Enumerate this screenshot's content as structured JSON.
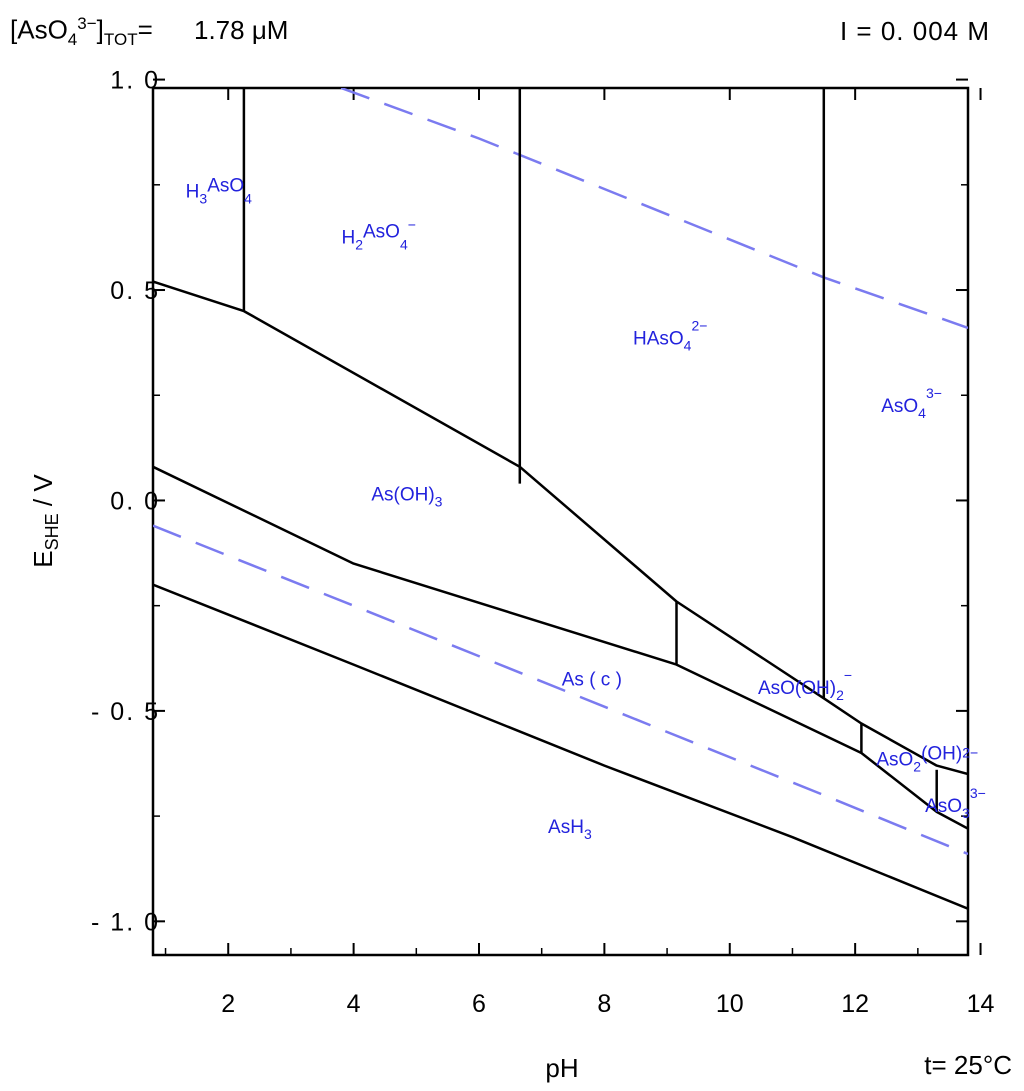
{
  "header": {
    "conc_pre": "[AsO",
    "conc_sub1": "4",
    "conc_sup": "3−",
    "conc_mid": "]",
    "conc_sub2": "TOT",
    "conc_eq": "=",
    "conc_value": "1.78 μM",
    "ionic_strength": "I =  0. 004  M"
  },
  "chart_data": {
    "type": "line",
    "title": "",
    "xlabel": "pH",
    "ylabel": "E",
    "ylabel_sub": "SHE",
    "ylabel_suffix": " / V",
    "footer_right": "t= 25°C",
    "xlim": [
      0.8,
      13.8
    ],
    "ylim": [
      -1.08,
      0.98
    ],
    "x_ticks": [
      2,
      4,
      6,
      8,
      10,
      12,
      14
    ],
    "x_tick_labels": [
      "2",
      "4",
      "6",
      "8",
      "10",
      "12",
      "14"
    ],
    "y_ticks": [
      1.0,
      0.5,
      0.0,
      -0.5,
      -1.0
    ],
    "y_tick_labels": [
      "1. 0",
      "0. 5",
      "0. 0",
      "- 0. 5",
      "- 1. 0"
    ],
    "colors": {
      "boundary": "#000000",
      "water": "#7b7bf0",
      "label": "#2222dd"
    },
    "water_lines": [
      {
        "name": "O2/H2O upper limit",
        "points": [
          [
            3.8,
            0.98
          ],
          [
            6.0,
            0.86
          ],
          [
            9.0,
            0.68
          ],
          [
            11.5,
            0.53
          ],
          [
            13.8,
            0.41
          ]
        ]
      },
      {
        "name": "H2O/H2 lower limit",
        "points": [
          [
            0.8,
            -0.06
          ],
          [
            4.0,
            -0.25
          ],
          [
            8.0,
            -0.49
          ],
          [
            11.5,
            -0.7
          ],
          [
            13.8,
            -0.84
          ]
        ]
      }
    ],
    "boundaries": [
      {
        "name": "H3AsO4/H2AsO4- boundary",
        "points": [
          [
            2.25,
            0.98
          ],
          [
            2.25,
            0.45
          ]
        ]
      },
      {
        "name": "H2AsO4-/HAsO42- boundary",
        "points": [
          [
            6.65,
            0.98
          ],
          [
            6.65,
            0.04
          ]
        ]
      },
      {
        "name": "HAsO42-/AsO43- boundary",
        "points": [
          [
            11.5,
            0.98
          ],
          [
            11.5,
            -0.47
          ]
        ]
      },
      {
        "name": "As(V)/As(III) boundary",
        "points": [
          [
            0.8,
            0.52
          ],
          [
            2.25,
            0.45
          ],
          [
            6.65,
            0.08
          ],
          [
            9.15,
            -0.24
          ],
          [
            11.5,
            -0.47
          ],
          [
            12.1,
            -0.53
          ],
          [
            13.3,
            -0.63
          ],
          [
            13.8,
            -0.65
          ]
        ]
      },
      {
        "name": "As(OH)3/AsO(OH)2- boundary",
        "points": [
          [
            9.15,
            -0.24
          ],
          [
            9.15,
            -0.39
          ]
        ]
      },
      {
        "name": "AsO(OH)2-/AsO2(OH)2- boundary",
        "points": [
          [
            12.1,
            -0.53
          ],
          [
            12.1,
            -0.6
          ]
        ]
      },
      {
        "name": "AsO2(OH)2-/AsO33- boundary",
        "points": [
          [
            13.3,
            -0.64
          ],
          [
            13.3,
            -0.74
          ]
        ]
      },
      {
        "name": "As(III)/As(c) boundary",
        "points": [
          [
            0.8,
            0.08
          ],
          [
            4.0,
            -0.15
          ],
          [
            9.15,
            -0.39
          ],
          [
            12.1,
            -0.6
          ],
          [
            13.3,
            -0.74
          ],
          [
            13.8,
            -0.78
          ]
        ]
      },
      {
        "name": "As(c)/AsH3 boundary",
        "points": [
          [
            0.8,
            -0.2
          ],
          [
            4.0,
            -0.39
          ],
          [
            8.0,
            -0.63
          ],
          [
            11.0,
            -0.8
          ],
          [
            13.8,
            -0.97
          ]
        ]
      }
    ],
    "species": [
      {
        "base": "H",
        "sub1": "3",
        "mid": "AsO",
        "sub2": "4",
        "sup": "",
        "x": 1.85,
        "y": 0.72
      },
      {
        "base": "H",
        "sub1": "2",
        "mid": "AsO",
        "sub2": "4",
        "sup": "−",
        "x": 4.4,
        "y": 0.61
      },
      {
        "base": "HAsO",
        "sub1": "4",
        "mid": "",
        "sub2": "",
        "sup": "2−",
        "x": 9.05,
        "y": 0.37
      },
      {
        "base": "AsO",
        "sub1": "4",
        "mid": "",
        "sub2": "",
        "sup": "3−",
        "x": 12.9,
        "y": 0.21
      },
      {
        "base": "As(OH)",
        "sub1": "3",
        "mid": "",
        "sub2": "",
        "sup": "",
        "x": 4.85,
        "y": 0.0
      },
      {
        "base": "As ( c )",
        "sub1": "",
        "mid": "",
        "sub2": "",
        "sup": "",
        "x": 7.8,
        "y": -0.44
      },
      {
        "base": "AsO(OH)",
        "sub1": "2",
        "mid": "",
        "sub2": "",
        "sup": "−",
        "x": 11.2,
        "y": -0.46
      },
      {
        "base": "AsO",
        "sub1": "2",
        "mid": "(OH)",
        "sub2": "",
        "sup": "2−",
        "x": 13.15,
        "y": -0.63
      },
      {
        "base": "AsO",
        "sub1": "3",
        "mid": "",
        "sub2": "",
        "sup": "3−",
        "x": 13.6,
        "y": -0.74
      },
      {
        "base": "AsH",
        "sub1": "3",
        "mid": "",
        "sub2": "",
        "sup": "",
        "x": 7.45,
        "y": -0.79
      }
    ]
  }
}
